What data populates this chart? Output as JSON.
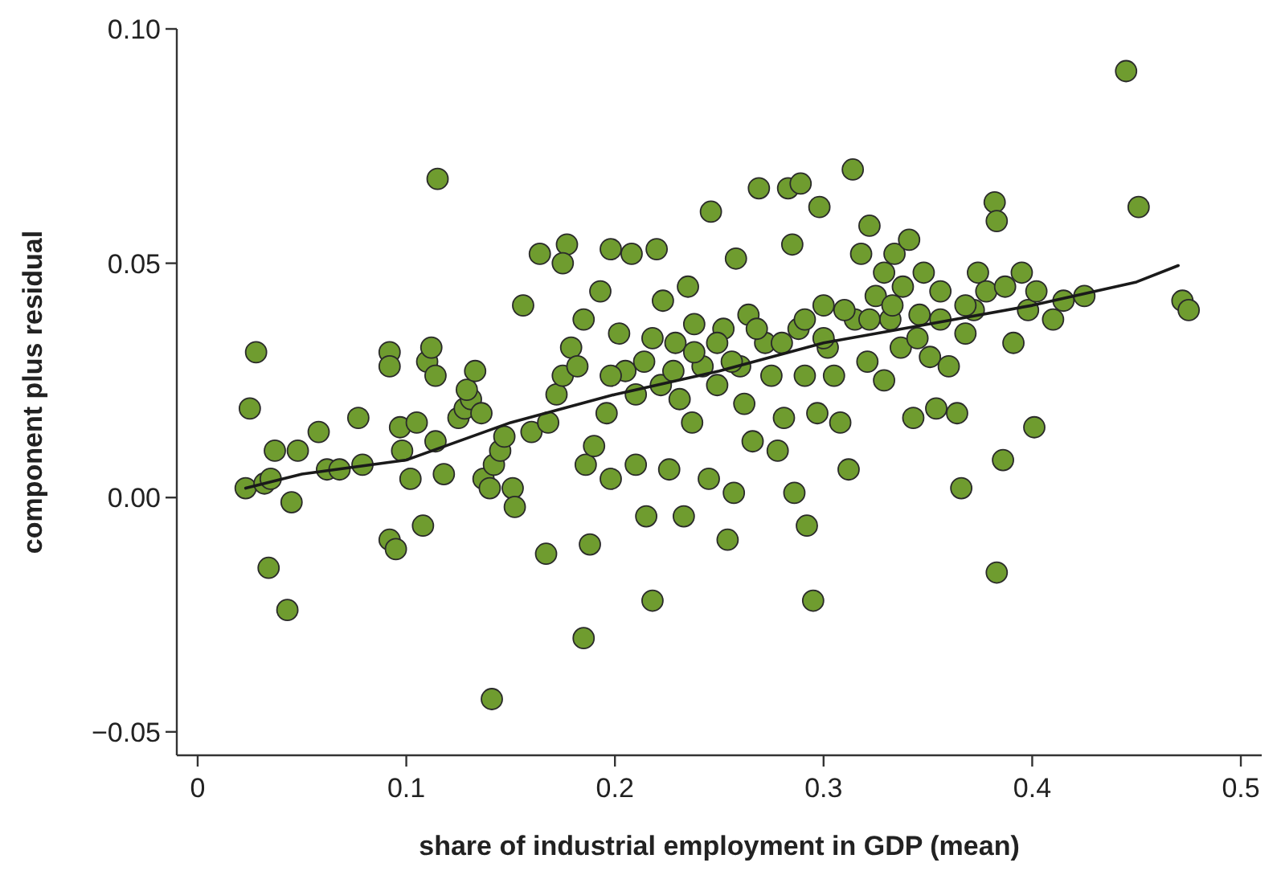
{
  "chart_data": {
    "type": "scatter",
    "xlabel": "share of industrial employment in GDP (mean)",
    "ylabel": "component plus residual",
    "xlim": [
      -0.01,
      0.51
    ],
    "ylim": [
      -0.055,
      0.1
    ],
    "xticks": [
      0,
      0.1,
      0.2,
      0.3,
      0.4,
      0.5
    ],
    "yticks": [
      {
        "value": -0.05,
        "label": "−0.05"
      },
      {
        "value": 0,
        "label": "0.00"
      },
      {
        "value": 0.05,
        "label": "0.05"
      },
      {
        "value": 0.1,
        "label": "0.10"
      }
    ],
    "grid": false,
    "marker": "circle",
    "series": [
      {
        "color": "#6f9c2f",
        "x": [
          0.023,
          0.028,
          0.025,
          0.032,
          0.035,
          0.037,
          0.034,
          0.043,
          0.045,
          0.048,
          0.058,
          0.062,
          0.068,
          0.077,
          0.079,
          0.092,
          0.092,
          0.092,
          0.095,
          0.097,
          0.098,
          0.102,
          0.105,
          0.108,
          0.11,
          0.112,
          0.114,
          0.115,
          0.114,
          0.118,
          0.125,
          0.128,
          0.131,
          0.129,
          0.133,
          0.136,
          0.137,
          0.14,
          0.141,
          0.142,
          0.145,
          0.147,
          0.151,
          0.152,
          0.156,
          0.16,
          0.164,
          0.167,
          0.168,
          0.172,
          0.175,
          0.177,
          0.175,
          0.179,
          0.182,
          0.185,
          0.186,
          0.185,
          0.188,
          0.19,
          0.193,
          0.196,
          0.198,
          0.198,
          0.202,
          0.205,
          0.208,
          0.21,
          0.214,
          0.215,
          0.218,
          0.22,
          0.222,
          0.223,
          0.226,
          0.229,
          0.231,
          0.233,
          0.235,
          0.237,
          0.238,
          0.242,
          0.245,
          0.246,
          0.249,
          0.252,
          0.254,
          0.257,
          0.258,
          0.26,
          0.262,
          0.264,
          0.266,
          0.269,
          0.272,
          0.275,
          0.278,
          0.281,
          0.283,
          0.285,
          0.286,
          0.288,
          0.289,
          0.291,
          0.292,
          0.295,
          0.297,
          0.298,
          0.3,
          0.302,
          0.305,
          0.308,
          0.312,
          0.314,
          0.315,
          0.318,
          0.321,
          0.322,
          0.325,
          0.329,
          0.329,
          0.332,
          0.334,
          0.337,
          0.338,
          0.341,
          0.343,
          0.346,
          0.348,
          0.351,
          0.354,
          0.356,
          0.36,
          0.364,
          0.366,
          0.368,
          0.372,
          0.374,
          0.378,
          0.382,
          0.383,
          0.383,
          0.386,
          0.387,
          0.391,
          0.395,
          0.398,
          0.401,
          0.402,
          0.41,
          0.415,
          0.425,
          0.445,
          0.451,
          0.472,
          0.475,
          0.198,
          0.21,
          0.218,
          0.228,
          0.238,
          0.249,
          0.256,
          0.268,
          0.28,
          0.291,
          0.3,
          0.31,
          0.322,
          0.333,
          0.345,
          0.356,
          0.368
        ],
        "values": [
          0.002,
          0.031,
          0.019,
          0.003,
          0.004,
          0.01,
          -0.015,
          -0.024,
          -0.001,
          0.01,
          0.014,
          0.006,
          0.006,
          0.017,
          0.007,
          0.031,
          0.028,
          -0.009,
          -0.011,
          0.015,
          0.01,
          0.004,
          0.016,
          -0.006,
          0.029,
          0.032,
          0.026,
          0.068,
          0.012,
          0.005,
          0.017,
          0.019,
          0.021,
          0.023,
          0.027,
          0.018,
          0.004,
          0.002,
          -0.043,
          0.007,
          0.01,
          0.013,
          0.002,
          -0.002,
          0.041,
          0.014,
          0.052,
          -0.012,
          0.016,
          0.022,
          0.026,
          0.054,
          0.05,
          0.032,
          0.028,
          0.038,
          0.007,
          -0.03,
          -0.01,
          0.011,
          0.044,
          0.018,
          0.053,
          0.004,
          0.035,
          0.027,
          0.052,
          0.007,
          0.029,
          -0.004,
          -0.022,
          0.053,
          0.024,
          0.042,
          0.006,
          0.033,
          0.021,
          -0.004,
          0.045,
          0.016,
          0.037,
          0.028,
          0.004,
          0.061,
          0.024,
          0.036,
          -0.009,
          0.001,
          0.051,
          0.028,
          0.02,
          0.039,
          0.012,
          0.066,
          0.033,
          0.026,
          0.01,
          0.017,
          0.066,
          0.054,
          0.001,
          0.036,
          0.067,
          0.026,
          -0.006,
          -0.022,
          0.018,
          0.062,
          0.041,
          0.032,
          0.026,
          0.016,
          0.006,
          0.07,
          0.038,
          0.052,
          0.029,
          0.058,
          0.043,
          0.025,
          0.048,
          0.038,
          0.052,
          0.032,
          0.045,
          0.055,
          0.017,
          0.039,
          0.048,
          0.03,
          0.019,
          0.044,
          0.028,
          0.018,
          0.002,
          0.035,
          0.04,
          0.048,
          0.044,
          0.063,
          -0.016,
          0.059,
          0.008,
          0.045,
          0.033,
          0.048,
          0.04,
          0.015,
          0.044,
          0.038,
          0.042,
          0.043,
          0.091,
          0.062,
          0.042,
          0.04,
          0.026,
          0.022,
          0.034,
          0.027,
          0.031,
          0.033,
          0.029,
          0.036,
          0.033,
          0.038,
          0.034,
          0.04,
          0.038,
          0.041,
          0.034,
          0.038,
          0.041
        ]
      },
      {
        "type": "line",
        "color": "#1a1a1a",
        "marker": "none",
        "x": [
          0.023,
          0.05,
          0.1,
          0.15,
          0.2,
          0.25,
          0.3,
          0.35,
          0.4,
          0.45,
          0.47
        ],
        "values": [
          0.002,
          0.005,
          0.008,
          0.016,
          0.022,
          0.027,
          0.033,
          0.037,
          0.041,
          0.046,
          0.0495
        ]
      }
    ]
  }
}
